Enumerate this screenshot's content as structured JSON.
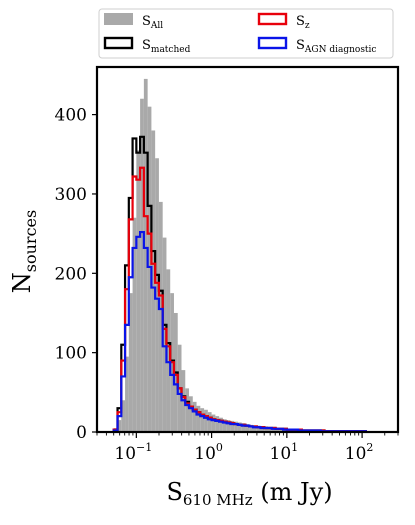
{
  "chart_data": {
    "type": "histogram",
    "xscale": "log",
    "xlim": [
      0.03,
      300
    ],
    "ylim": [
      0,
      460
    ],
    "grid": false,
    "legend_placement": "top, above axes, two columns",
    "ylabel_main": "N",
    "ylabel_sub": "sources",
    "xlabel_main": "S",
    "xlabel_sub": "610 MHz",
    "xlabel_unit": "(m Jy)",
    "y_ticks": [
      {
        "value": 0,
        "label": "0"
      },
      {
        "value": 100,
        "label": "100"
      },
      {
        "value": 200,
        "label": "200"
      },
      {
        "value": 300,
        "label": "300"
      },
      {
        "value": 400,
        "label": "400"
      }
    ],
    "x_ticks": [
      {
        "value": 0.1,
        "base": "10",
        "exp": "−1"
      },
      {
        "value": 1,
        "base": "10",
        "exp": "0"
      },
      {
        "value": 10,
        "base": "10",
        "exp": "1"
      },
      {
        "value": 100,
        "base": "10",
        "exp": "2"
      }
    ],
    "bin_log_start": -1.3,
    "bin_log_width": 0.05,
    "series": [
      {
        "name": "S",
        "sub": "All",
        "style": "fill",
        "color": "#a9a9a9",
        "counts": [
          5,
          15,
          40,
          95,
          175,
          270,
          355,
          420,
          445,
          410,
          380,
          345,
          290,
          245,
          205,
          175,
          150,
          110,
          78,
          55,
          45,
          38,
          33,
          30,
          28,
          25,
          22,
          20,
          18,
          16,
          15,
          14,
          13,
          12,
          11,
          10,
          9,
          8,
          8,
          7,
          7,
          6,
          6,
          5,
          5,
          4,
          4,
          4,
          3,
          3,
          3,
          3,
          2,
          2,
          2,
          2,
          2,
          1,
          1,
          1,
          1,
          1,
          1,
          1,
          1,
          1,
          1
        ]
      },
      {
        "name": "S",
        "sub": "matched",
        "style": "step",
        "color": "#000000",
        "counts": [
          3,
          30,
          110,
          210,
          295,
          370,
          352,
          372,
          352,
          285,
          228,
          198,
          178,
          135,
          112,
          90,
          75,
          55,
          45,
          38,
          32,
          28,
          25,
          22,
          20,
          18,
          16,
          15,
          14,
          13,
          12,
          11,
          10,
          9,
          9,
          8,
          7,
          7,
          6,
          6,
          5,
          5,
          5,
          4,
          4,
          4,
          3,
          3,
          3,
          3,
          2,
          2,
          2,
          2,
          2,
          2,
          1,
          1,
          1,
          1,
          1,
          1,
          1,
          1,
          1,
          1,
          1
        ]
      },
      {
        "name": "S",
        "sub": "z",
        "style": "step",
        "color": "#e8000b",
        "counts": [
          3,
          25,
          90,
          180,
          268,
          322,
          318,
          333,
          272,
          250,
          212,
          188,
          172,
          130,
          108,
          88,
          72,
          55,
          44,
          36,
          32,
          28,
          25,
          22,
          20,
          18,
          16,
          15,
          14,
          13,
          12,
          11,
          10,
          9,
          9,
          8,
          7,
          7,
          6,
          6,
          5,
          5,
          5,
          4,
          4,
          4,
          3,
          3,
          3,
          3,
          2,
          2,
          2,
          2,
          2,
          2,
          1,
          1,
          1,
          1,
          1,
          1,
          1,
          1,
          1,
          1,
          1
        ]
      },
      {
        "name": "S",
        "sub": "AGN diagnostic",
        "style": "step",
        "color": "#0a14e8",
        "counts": [
          2,
          20,
          70,
          135,
          195,
          232,
          246,
          252,
          232,
          208,
          182,
          168,
          155,
          108,
          88,
          72,
          60,
          48,
          40,
          34,
          30,
          26,
          22,
          20,
          18,
          16,
          15,
          14,
          13,
          12,
          11,
          10,
          10,
          9,
          8,
          8,
          7,
          6,
          6,
          5,
          5,
          5,
          4,
          4,
          4,
          3,
          3,
          3,
          3,
          2,
          2,
          2,
          2,
          2,
          2,
          1,
          1,
          1,
          1,
          1,
          1,
          1,
          1,
          1,
          1,
          1,
          1
        ]
      }
    ],
    "legend": [
      {
        "base": "S",
        "sub": "All",
        "swatch": "fill",
        "color": "#a9a9a9"
      },
      {
        "base": "S",
        "sub": "z",
        "swatch": "outline",
        "color": "#e8000b"
      },
      {
        "base": "S",
        "sub": "matched",
        "swatch": "outline",
        "color": "#000000"
      },
      {
        "base": "S",
        "sub": "AGN diagnostic",
        "swatch": "outline",
        "color": "#0a14e8"
      }
    ]
  }
}
